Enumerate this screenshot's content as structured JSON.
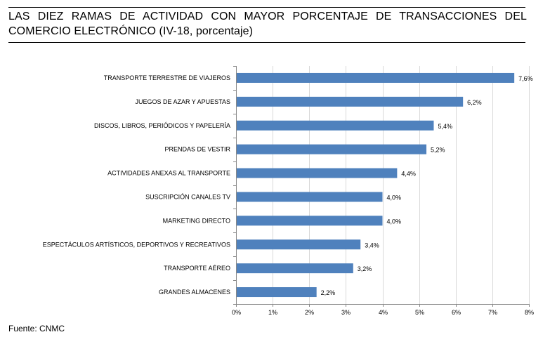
{
  "chart_data": {
    "type": "bar",
    "orientation": "horizontal",
    "title": "LAS DIEZ RAMAS DE ACTIVIDAD CON MAYOR PORCENTAJE DE TRANSACCIONES DEL COMERCIO ELECTRÓNICO (IV-18, porcentaje)",
    "categories": [
      "TRANSPORTE TERRESTRE DE VIAJEROS",
      "JUEGOS DE AZAR Y APUESTAS",
      "DISCOS, LIBROS, PERIÓDICOS Y PAPELERÍA",
      "PRENDAS DE VESTIR",
      "ACTIVIDADES ANEXAS AL TRANSPORTE",
      "SUSCRIPCIÓN CANALES TV",
      "MARKETING DIRECTO",
      "ESPECTÁCULOS ARTÍSTICOS, DEPORTIVOS Y RECREATIVOS",
      "TRANSPORTE AÉREO",
      "GRANDES ALMACENES"
    ],
    "values": [
      7.6,
      6.2,
      5.4,
      5.2,
      4.4,
      4.0,
      4.0,
      3.4,
      3.2,
      2.2
    ],
    "value_labels": [
      "7,6%",
      "6,2%",
      "5,4%",
      "5,2%",
      "4,4%",
      "4,0%",
      "4,0%",
      "3,4%",
      "3,2%",
      "2,2%"
    ],
    "xlim": [
      0,
      8
    ],
    "xticks": [
      0,
      1,
      2,
      3,
      4,
      5,
      6,
      7,
      8
    ],
    "xtick_labels": [
      "0%",
      "1%",
      "2%",
      "3%",
      "4%",
      "5%",
      "6%",
      "7%",
      "8%"
    ],
    "xlabel": "",
    "ylabel": "",
    "grid": "vertical",
    "bar_color": "#4f81bd",
    "grid_color": "#d9d9d9",
    "source": "Fuente: CNMC"
  }
}
